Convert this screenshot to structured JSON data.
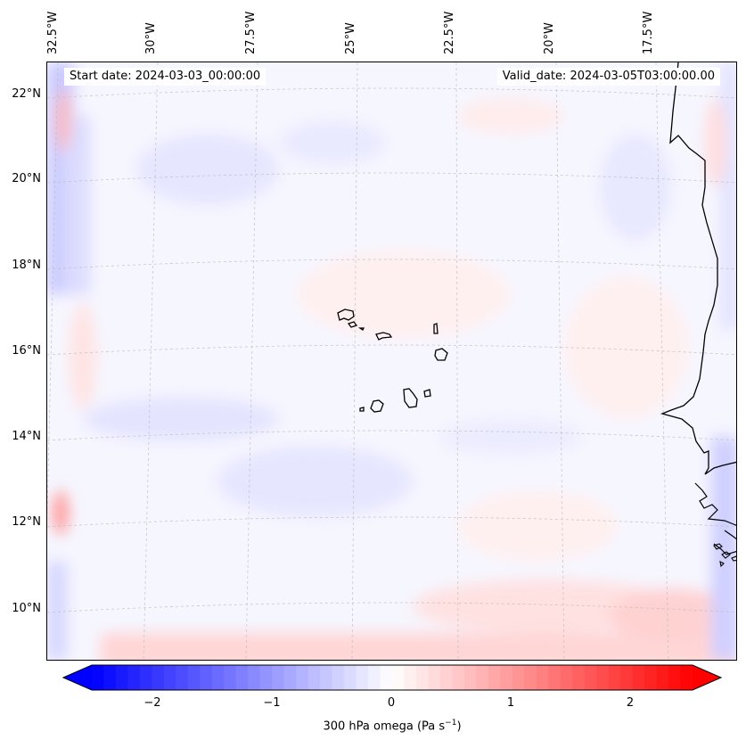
{
  "map": {
    "region": "Eastern tropical North Atlantic (Cape Verde, West African coast)",
    "projection": "conic",
    "field": "300 hPa omega",
    "gridlines": true,
    "start_date": "Start date: 2024-03-03_00:00:00",
    "valid_date": "Valid_date: 2024-03-05T03:00:00.00",
    "lon_labels": [
      "32.5°W",
      "30°W",
      "27.5°W",
      "25°W",
      "22.5°W",
      "20°W",
      "17.5°W"
    ],
    "lat_labels": [
      "22°N",
      "20°N",
      "18°N",
      "16°N",
      "14°N",
      "12°N",
      "10°N"
    ],
    "features": [
      "Cape Verde islands",
      "West African coastline (Mauritania, Senegal, Gambia, Guinea-Bissau)"
    ]
  },
  "colorbar": {
    "ticks": [
      "−2",
      "−1",
      "0",
      "1",
      "2"
    ],
    "tick_values": [
      -2,
      -1,
      0,
      1,
      2
    ],
    "range": [
      -2.5,
      2.5
    ],
    "label_prefix": "300 hPa omega (Pa s",
    "label_exp": "−1",
    "label_suffix": ")",
    "colors": {
      "min": "#0000ff",
      "mid": "#ffffff",
      "max": "#ff0000"
    },
    "extend": "both"
  }
}
